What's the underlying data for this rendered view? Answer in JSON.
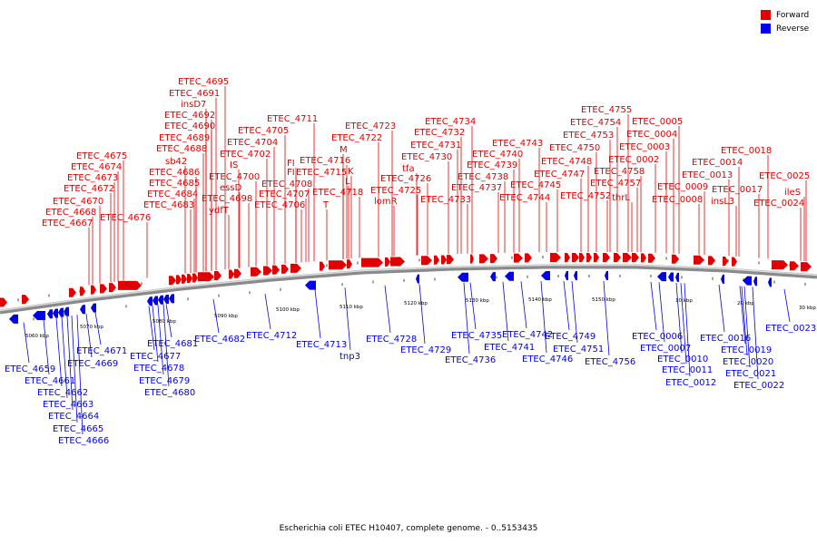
{
  "legend": {
    "forward": {
      "label": "Forward",
      "color": "#e00000"
    },
    "reverse": {
      "label": "Reverse",
      "color": "#0000ee"
    }
  },
  "caption": "Escherichia coli ETEC H10407, complete genome. - 0..5153435",
  "scale_labels": [
    "5060 kbp",
    "5070 kbp",
    "5080 kbp",
    "5090 kbp",
    "5100 kbp",
    "5110 kbp",
    "5120 kbp",
    "5130 kbp",
    "5140 kbp",
    "5150 kbp",
    "10 kbp",
    "20 kbp",
    "30 kbp"
  ],
  "forward_labels": [
    "ETEC_4667",
    "ETEC_4668",
    "ETEC_4670",
    "ETEC_4672",
    "ETEC_4673",
    "ETEC_4674",
    "ETEC_4675",
    "ETEC_4676",
    "ETEC_4683",
    "ETEC_4684",
    "ETEC_4685",
    "ETEC_4686",
    "sb42",
    "ETEC_4688",
    "ETEC_4689",
    "ETEC_4690",
    "ETEC_4692",
    "insD7",
    "ETEC_4691",
    "ETEC_4695",
    "ydfT",
    "ETEC_4698",
    "essD",
    "ETEC_4700",
    "IS",
    "ETEC_4702",
    "ETEC_4704",
    "ETEC_4705",
    "ETEC_4706",
    "ETEC_4707",
    "ETEC_4708",
    "FI",
    "FI",
    "ETEC_4711",
    "T",
    "ETEC_4718",
    "L",
    "K",
    "M",
    "ETEC_4715",
    "ETEC_4716",
    "ETEC_4722",
    "ETEC_4723",
    "lomR",
    "ETEC_4725",
    "ETEC_4726",
    "tfa",
    "ETEC_4730",
    "ETEC_4731",
    "ETEC_4732",
    "ETEC_4734",
    "ETEC_4733",
    "ETEC_4737",
    "ETEC_4738",
    "ETEC_4739",
    "ETEC_4740",
    "ETEC_4743",
    "ETEC_4744",
    "ETEC_4745",
    "ETEC_4747",
    "ETEC_4748",
    "ETEC_4750",
    "ETEC_4753",
    "ETEC_4754",
    "ETEC_4755",
    "ETEC_4752",
    "thrL",
    "ETEC_4757",
    "ETEC_4758",
    "ETEC_0002",
    "ETEC_0003",
    "ETEC_0004",
    "ETEC_0005",
    "ETEC_0008",
    "ETEC_0009",
    "ETEC_0013",
    "ETEC_0014",
    "ETEC_0018",
    "insL3",
    "ETEC_0017",
    "ETEC_0024",
    "ileS",
    "ETEC_0025"
  ],
  "reverse_labels": [
    "ETEC_4659",
    "ETEC_4661",
    "ETEC_4662",
    "ETEC_4663",
    "ETEC_4664",
    "ETEC_4665",
    "ETEC_4666",
    "ETEC_4669",
    "ETEC_4671",
    "ETEC_4677",
    "ETEC_4678",
    "ETEC_4679",
    "ETEC_4680",
    "ETEC_4681",
    "ETEC_4682",
    "ETEC_4712",
    "ETEC_4713",
    "tnp3",
    "ETEC_4728",
    "ETEC_4729",
    "ETEC_4735",
    "ETEC_4736",
    "ETEC_4741",
    "ETEC_4742",
    "ETEC_4746",
    "ETEC_4749",
    "ETEC_4751",
    "ETEC_4756",
    "ETEC_0006",
    "ETEC_0007",
    "ETEC_0010",
    "ETEC_0011",
    "ETEC_0012",
    "ETEC_0016",
    "ETEC_0019",
    "ETEC_0020",
    "ETEC_0021",
    "ETEC_0022",
    "ETEC_0023"
  ]
}
